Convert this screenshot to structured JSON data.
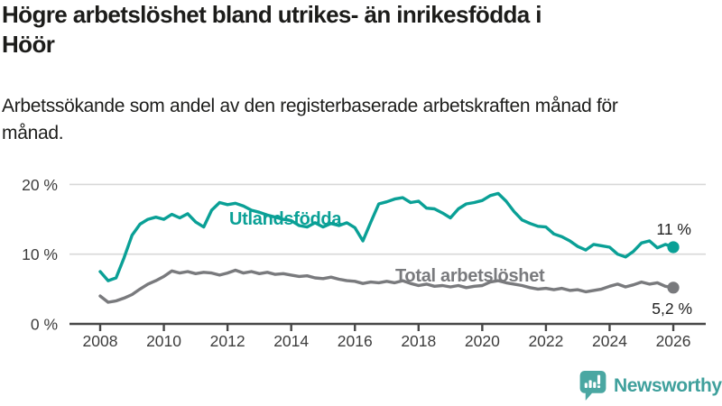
{
  "header": {
    "title_line1": "Högre arbetslöshet bland utrikes- än inrikesfödda i",
    "title_line2": "Höör",
    "subtitle": "Arbetssökande som andel av den registerbaserade arbetskraften månad för månad."
  },
  "chart_data": {
    "type": "line",
    "x_start": 2008,
    "x_step": 0.25,
    "x_end": 2026,
    "ylim": [
      0,
      20
    ],
    "unit": "%",
    "grid": true,
    "legend_position": "inline-labels",
    "y_ticks": [
      {
        "value": 20,
        "label": "20 %"
      },
      {
        "value": 10,
        "label": "10 %"
      },
      {
        "value": 0,
        "label": "0 %"
      }
    ],
    "x_ticks": [
      {
        "value": 2008,
        "label": "2008"
      },
      {
        "value": 2010,
        "label": "2010"
      },
      {
        "value": 2012,
        "label": "2012"
      },
      {
        "value": 2014,
        "label": "2014"
      },
      {
        "value": 2016,
        "label": "2016"
      },
      {
        "value": 2018,
        "label": "2018"
      },
      {
        "value": 2020,
        "label": "2020"
      },
      {
        "value": 2022,
        "label": "2022"
      },
      {
        "value": 2024,
        "label": "2024"
      },
      {
        "value": 2026,
        "label": "2026"
      }
    ],
    "series": [
      {
        "name": "Utlandsfödda",
        "color": "#0aa096",
        "end_label": "11 %",
        "values": [
          7.5,
          6.2,
          6.6,
          9.5,
          12.7,
          14.3,
          15.0,
          15.3,
          15.0,
          15.7,
          15.2,
          15.8,
          14.6,
          13.9,
          16.3,
          17.4,
          17.1,
          17.3,
          16.9,
          16.3,
          16.0,
          15.6,
          15.3,
          15.0,
          14.8,
          14.1,
          13.9,
          14.5,
          13.9,
          14.4,
          14.1,
          14.5,
          13.8,
          11.9,
          14.6,
          17.2,
          17.5,
          17.9,
          18.1,
          17.4,
          17.6,
          16.6,
          16.5,
          15.9,
          15.2,
          16.5,
          17.2,
          17.4,
          17.7,
          18.4,
          18.7,
          17.6,
          16.1,
          14.9,
          14.4,
          14.0,
          13.9,
          12.9,
          12.5,
          11.9,
          11.1,
          10.6,
          11.4,
          11.2,
          11.0,
          10.0,
          9.6,
          10.4,
          11.6,
          11.9,
          10.9,
          11.4,
          11.0
        ]
      },
      {
        "name": "Total arbetslöshet",
        "color": "#797a7d",
        "end_label": "5,2 %",
        "values": [
          4.0,
          3.1,
          3.3,
          3.7,
          4.2,
          5.0,
          5.7,
          6.2,
          6.8,
          7.6,
          7.3,
          7.5,
          7.2,
          7.4,
          7.3,
          7.0,
          7.3,
          7.7,
          7.3,
          7.5,
          7.2,
          7.4,
          7.1,
          7.2,
          7.0,
          6.8,
          6.9,
          6.6,
          6.5,
          6.7,
          6.4,
          6.2,
          6.1,
          5.8,
          6.0,
          5.9,
          6.1,
          5.9,
          6.2,
          5.8,
          5.5,
          5.7,
          5.4,
          5.5,
          5.3,
          5.5,
          5.2,
          5.4,
          5.5,
          6.0,
          6.2,
          5.9,
          5.7,
          5.5,
          5.2,
          5.0,
          5.1,
          4.9,
          5.1,
          4.8,
          4.9,
          4.6,
          4.8,
          5.0,
          5.4,
          5.7,
          5.3,
          5.6,
          6.0,
          5.7,
          5.9,
          5.4,
          5.2
        ]
      }
    ]
  },
  "footer": {
    "brand": "Newsworthy",
    "brand_color": "#3fa09c"
  }
}
